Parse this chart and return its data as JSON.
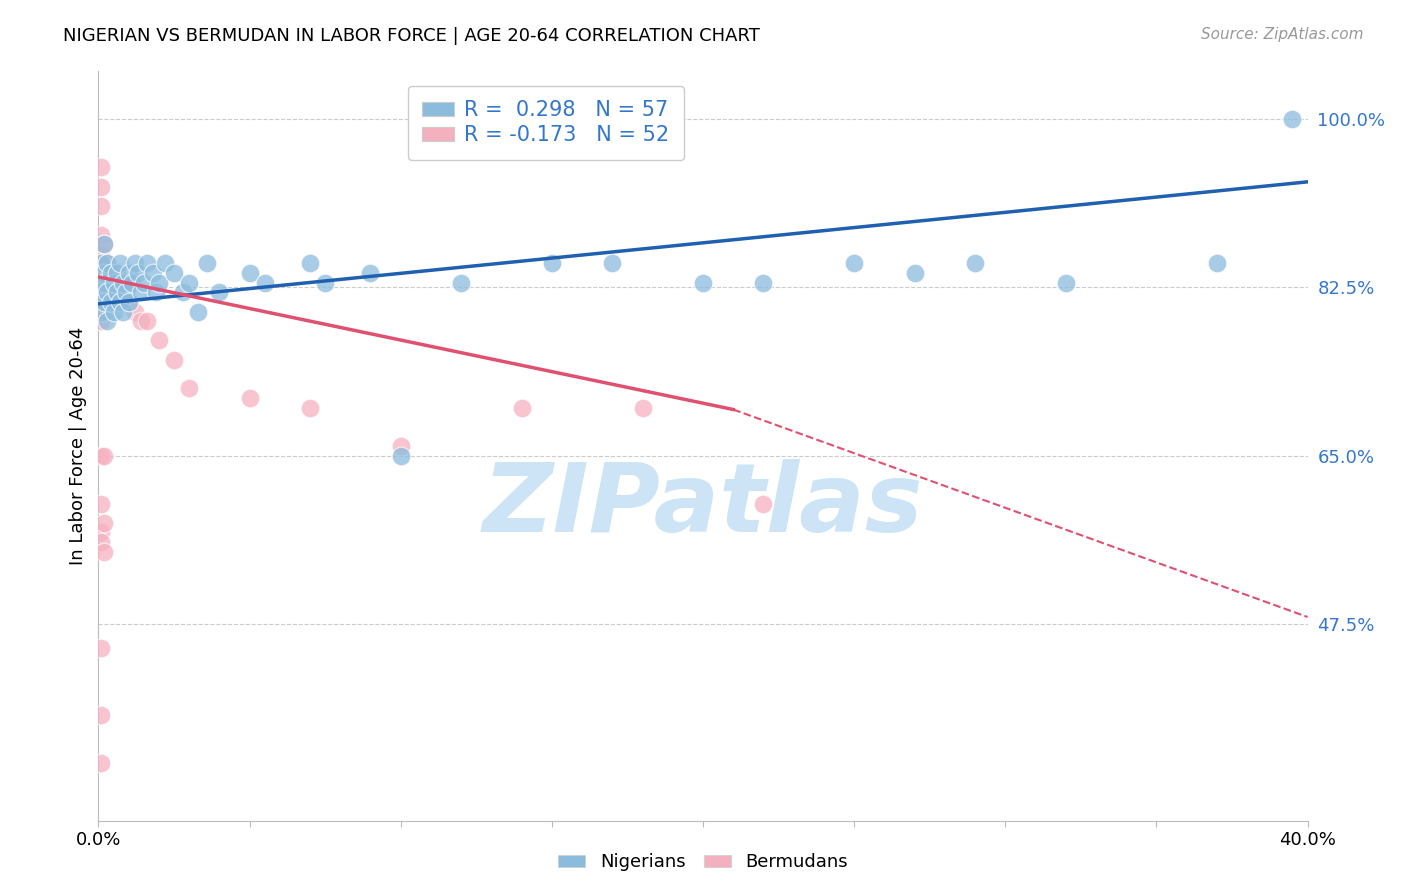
{
  "title": "NIGERIAN VS BERMUDAN IN LABOR FORCE | AGE 20-64 CORRELATION CHART",
  "source": "Source: ZipAtlas.com",
  "ylabel": "In Labor Force | Age 20-64",
  "xlim": [
    0.0,
    0.4
  ],
  "ylim": [
    0.27,
    1.05
  ],
  "yticks": [
    0.475,
    0.65,
    0.825,
    1.0
  ],
  "ytick_labels": [
    "47.5%",
    "65.0%",
    "82.5%",
    "100.0%"
  ],
  "xticks": [
    0.0,
    0.05,
    0.1,
    0.15,
    0.2,
    0.25,
    0.3,
    0.35,
    0.4
  ],
  "xtick_labels": [
    "0.0%",
    "",
    "",
    "",
    "",
    "",
    "",
    "",
    "40.0%"
  ],
  "legend_R_nigerian": "0.298",
  "legend_N_nigerian": "57",
  "legend_R_bermudan": "-0.173",
  "legend_N_bermudan": "52",
  "nigerian_color": "#8bbcde",
  "bermudan_color": "#f5b0bf",
  "nigerian_line_color": "#2060b0",
  "bermudan_line_color": "#e05070",
  "watermark": "ZIPatlas",
  "watermark_color": "#cce4f5",
  "nig_line_x0": 0.0,
  "nig_line_y0": 0.808,
  "nig_line_x1": 0.4,
  "nig_line_y1": 0.935,
  "ber_line_x0": 0.0,
  "ber_line_y0": 0.836,
  "ber_line_x1_solid": 0.21,
  "ber_line_y1_solid": 0.698,
  "ber_line_x1_dash": 0.4,
  "ber_line_y1_dash": 0.482,
  "nig_x": [
    0.001,
    0.001,
    0.001,
    0.001,
    0.002,
    0.002,
    0.002,
    0.002,
    0.003,
    0.003,
    0.003,
    0.004,
    0.004,
    0.005,
    0.005,
    0.006,
    0.006,
    0.007,
    0.007,
    0.008,
    0.008,
    0.009,
    0.01,
    0.01,
    0.011,
    0.012,
    0.013,
    0.014,
    0.015,
    0.016,
    0.018,
    0.019,
    0.02,
    0.022,
    0.025,
    0.028,
    0.03,
    0.033,
    0.036,
    0.04,
    0.05,
    0.055,
    0.07,
    0.075,
    0.09,
    0.1,
    0.12,
    0.15,
    0.17,
    0.2,
    0.22,
    0.25,
    0.27,
    0.29,
    0.32,
    0.37,
    0.395
  ],
  "nig_y": [
    0.83,
    0.85,
    0.8,
    0.82,
    0.84,
    0.81,
    0.83,
    0.87,
    0.82,
    0.85,
    0.79,
    0.84,
    0.81,
    0.83,
    0.8,
    0.84,
    0.82,
    0.81,
    0.85,
    0.83,
    0.8,
    0.82,
    0.84,
    0.81,
    0.83,
    0.85,
    0.84,
    0.82,
    0.83,
    0.85,
    0.84,
    0.82,
    0.83,
    0.85,
    0.84,
    0.82,
    0.83,
    0.8,
    0.85,
    0.82,
    0.84,
    0.83,
    0.85,
    0.83,
    0.84,
    0.65,
    0.83,
    0.85,
    0.85,
    0.83,
    0.83,
    0.85,
    0.84,
    0.85,
    0.83,
    0.85,
    1.0
  ],
  "ber_x": [
    0.001,
    0.001,
    0.001,
    0.001,
    0.001,
    0.001,
    0.001,
    0.001,
    0.001,
    0.001,
    0.002,
    0.002,
    0.002,
    0.002,
    0.003,
    0.003,
    0.003,
    0.004,
    0.004,
    0.005,
    0.005,
    0.006,
    0.006,
    0.007,
    0.008,
    0.009,
    0.01,
    0.012,
    0.014,
    0.016,
    0.02,
    0.025,
    0.03,
    0.05,
    0.07,
    0.1,
    0.14,
    0.18,
    0.22,
    0.001,
    0.001,
    0.001,
    0.001,
    0.001,
    0.001,
    0.002,
    0.002,
    0.002,
    0.001,
    0.001,
    0.001,
    0.001
  ],
  "ber_y": [
    0.88,
    0.85,
    0.83,
    0.82,
    0.84,
    0.81,
    0.8,
    0.86,
    0.83,
    0.79,
    0.87,
    0.84,
    0.82,
    0.8,
    0.85,
    0.83,
    0.81,
    0.84,
    0.82,
    0.83,
    0.81,
    0.84,
    0.82,
    0.83,
    0.81,
    0.82,
    0.81,
    0.8,
    0.79,
    0.79,
    0.77,
    0.75,
    0.72,
    0.71,
    0.7,
    0.66,
    0.7,
    0.7,
    0.6,
    0.95,
    0.93,
    0.91,
    0.65,
    0.57,
    0.56,
    0.65,
    0.55,
    0.58,
    0.45,
    0.38,
    0.6,
    0.33
  ]
}
